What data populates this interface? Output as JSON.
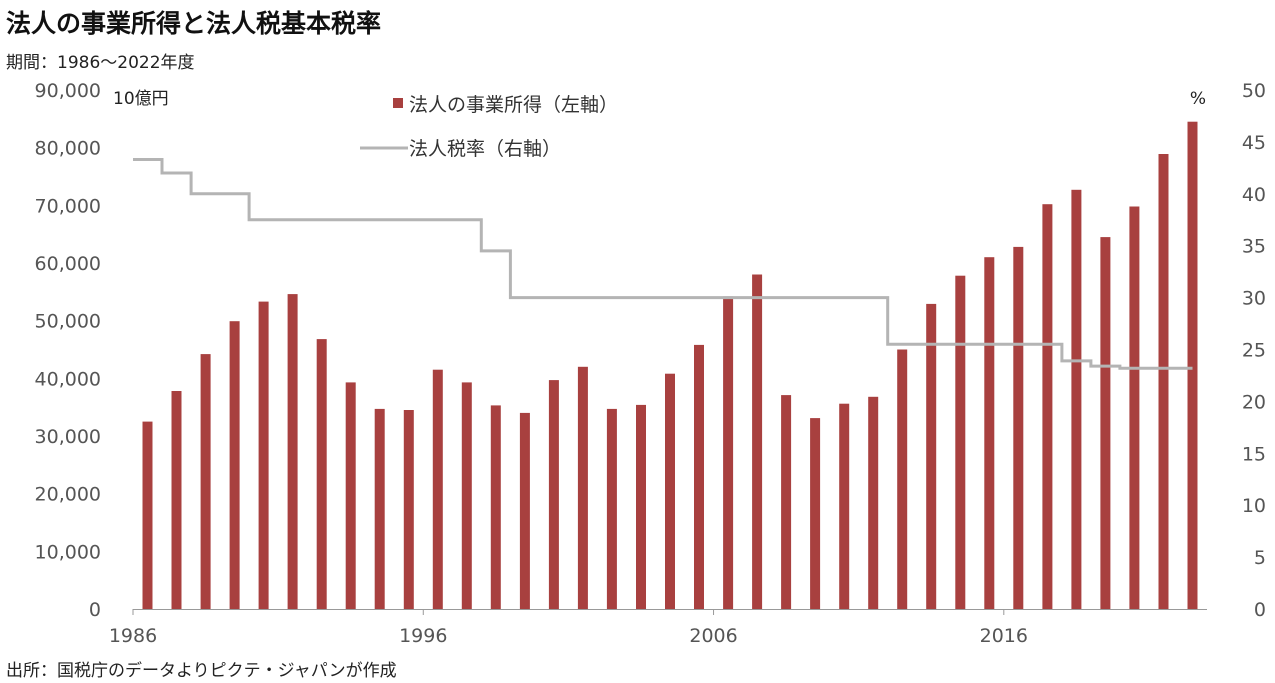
{
  "title": "法人の事業所得と法人税基本税率",
  "subtitle": "期間：1986～2022年度",
  "source": "出所：国税庁のデータよりピクテ・ジャパンが作成",
  "colors": {
    "bar": "#a8403f",
    "line": "#b4b4b4"
  },
  "chart_data": {
    "type": "bar",
    "years": [
      1986,
      1987,
      1988,
      1989,
      1990,
      1991,
      1992,
      1993,
      1994,
      1995,
      1996,
      1997,
      1998,
      1999,
      2000,
      2001,
      2002,
      2003,
      2004,
      2005,
      2006,
      2007,
      2008,
      2009,
      2010,
      2011,
      2012,
      2013,
      2014,
      2015,
      2016,
      2017,
      2018,
      2019,
      2020,
      2021,
      2022
    ],
    "xticks": [
      "1986",
      "1996",
      "2006",
      "2016"
    ],
    "series": [
      {
        "name": "法人の事業所得（左軸）",
        "type": "bar",
        "axis": "left",
        "values": [
          32500,
          37800,
          44200,
          49900,
          53300,
          54600,
          46800,
          39300,
          34700,
          34500,
          41500,
          39300,
          35300,
          34000,
          39700,
          42000,
          34700,
          35400,
          40800,
          45800,
          54200,
          58000,
          37100,
          33100,
          35600,
          36800,
          45000,
          52900,
          57800,
          61000,
          62800,
          70200,
          72700,
          64500,
          69800,
          78900,
          84500
        ]
      },
      {
        "name": "法人税率（右軸）",
        "type": "step",
        "axis": "right",
        "values": [
          43.3,
          42.0,
          40.0,
          40.0,
          37.5,
          37.5,
          37.5,
          37.5,
          37.5,
          37.5,
          37.5,
          37.5,
          34.5,
          30.0,
          30.0,
          30.0,
          30.0,
          30.0,
          30.0,
          30.0,
          30.0,
          30.0,
          30.0,
          30.0,
          30.0,
          30.0,
          25.5,
          25.5,
          25.5,
          25.5,
          25.5,
          25.5,
          23.9,
          23.4,
          23.2,
          23.2,
          23.2
        ]
      }
    ],
    "y_left": {
      "min": 0,
      "max": 90000,
      "ticks": [
        "0",
        "10,000",
        "20,000",
        "30,000",
        "40,000",
        "50,000",
        "60,000",
        "70,000",
        "80,000",
        "90,000"
      ],
      "unit": "10億円"
    },
    "y_right": {
      "min": 0,
      "max": 50,
      "ticks": [
        "0",
        "5",
        "10",
        "15",
        "20",
        "25",
        "30",
        "35",
        "40",
        "45",
        "50"
      ],
      "unit": "%"
    },
    "grid": false,
    "legend_position": "top-center"
  }
}
